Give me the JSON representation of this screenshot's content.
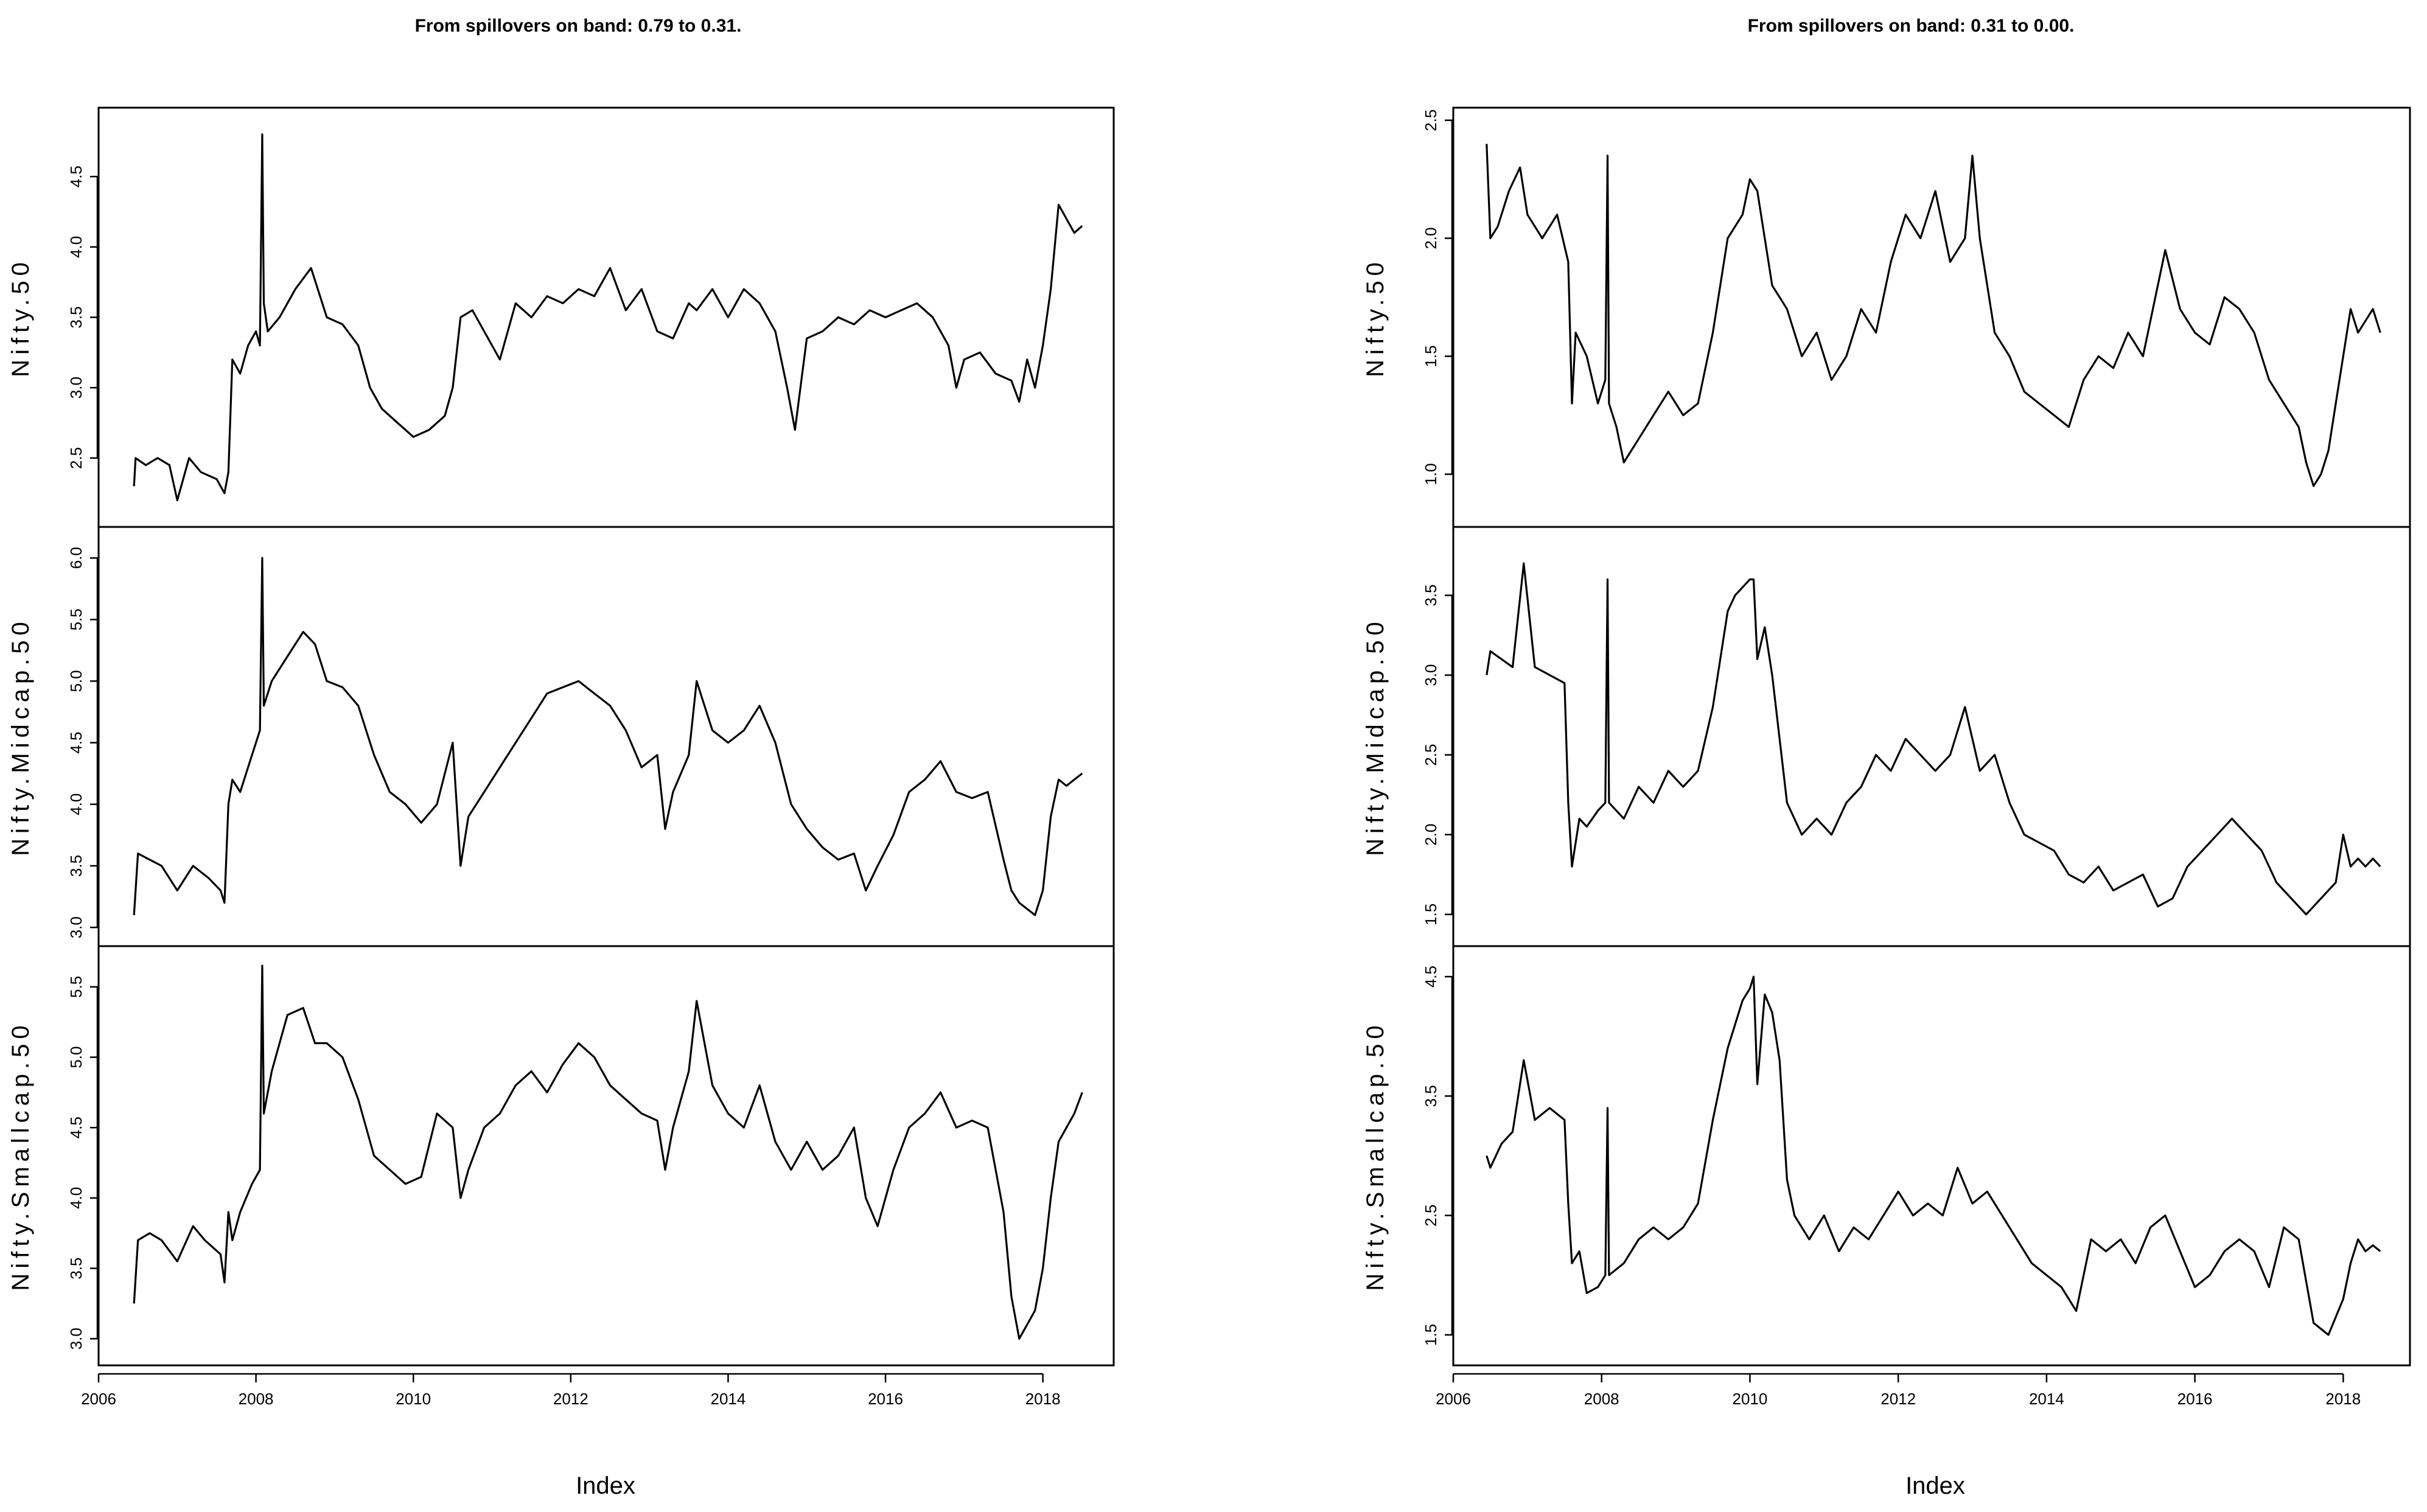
{
  "chart_data": [
    {
      "type": "line",
      "title": "From spillovers on band: 0.79 to 0.31.",
      "xlabel": "Index",
      "x_ticks": [
        "2006",
        "2008",
        "2010",
        "2012",
        "2014",
        "2016",
        "2018"
      ],
      "xlim": [
        2006.0,
        2018.9
      ],
      "grid": false,
      "panels": [
        {
          "ylabel": "Nifty.50",
          "ylim": [
            2.1,
            4.9
          ],
          "y_ticks": [
            2.5,
            3.0,
            3.5,
            4.0,
            4.5
          ],
          "x": [
            2006.45,
            2006.47,
            2006.6,
            2006.75,
            2006.9,
            2007.0,
            2007.15,
            2007.3,
            2007.5,
            2007.6,
            2007.65,
            2007.7,
            2007.8,
            2007.9,
            2008.0,
            2008.05,
            2008.08,
            2008.1,
            2008.15,
            2008.3,
            2008.5,
            2008.7,
            2008.9,
            2009.1,
            2009.3,
            2009.45,
            2009.6,
            2009.8,
            2010.0,
            2010.2,
            2010.4,
            2010.5,
            2010.6,
            2010.75,
            2010.9,
            2011.1,
            2011.3,
            2011.5,
            2011.7,
            2011.9,
            2012.1,
            2012.3,
            2012.5,
            2012.7,
            2012.9,
            2013.1,
            2013.3,
            2013.5,
            2013.6,
            2013.8,
            2014.0,
            2014.2,
            2014.4,
            2014.6,
            2014.75,
            2014.85,
            2015.0,
            2015.2,
            2015.4,
            2015.6,
            2015.8,
            2016.0,
            2016.2,
            2016.4,
            2016.6,
            2016.8,
            2016.9,
            2017.0,
            2017.2,
            2017.4,
            2017.6,
            2017.7,
            2017.8,
            2017.9,
            2018.0,
            2018.1,
            2018.2,
            2018.3,
            2018.4,
            2018.5
          ],
          "y": [
            2.3,
            2.5,
            2.45,
            2.5,
            2.45,
            2.2,
            2.5,
            2.4,
            2.35,
            2.25,
            2.4,
            3.2,
            3.1,
            3.3,
            3.4,
            3.3,
            4.8,
            3.6,
            3.4,
            3.5,
            3.7,
            3.85,
            3.5,
            3.45,
            3.3,
            3.0,
            2.85,
            2.75,
            2.65,
            2.7,
            2.8,
            3.0,
            3.5,
            3.55,
            3.4,
            3.2,
            3.6,
            3.5,
            3.65,
            3.6,
            3.7,
            3.65,
            3.85,
            3.55,
            3.7,
            3.4,
            3.35,
            3.6,
            3.55,
            3.7,
            3.5,
            3.7,
            3.6,
            3.4,
            3.0,
            2.7,
            3.35,
            3.4,
            3.5,
            3.45,
            3.55,
            3.5,
            3.55,
            3.6,
            3.5,
            3.3,
            3.0,
            3.2,
            3.25,
            3.1,
            3.05,
            2.9,
            3.2,
            3.0,
            3.3,
            3.7,
            4.3,
            4.2,
            4.1,
            4.15
          ]
        },
        {
          "ylabel": "Nifty.Midcap.50",
          "ylim": [
            2.95,
            6.15
          ],
          "y_ticks": [
            3.0,
            3.5,
            4.0,
            4.5,
            5.0,
            5.5,
            6.0
          ],
          "x": [
            2006.45,
            2006.5,
            2006.65,
            2006.8,
            2007.0,
            2007.2,
            2007.4,
            2007.55,
            2007.6,
            2007.65,
            2007.7,
            2007.8,
            2007.95,
            2008.05,
            2008.08,
            2008.1,
            2008.2,
            2008.4,
            2008.6,
            2008.75,
            2008.9,
            2009.1,
            2009.3,
            2009.5,
            2009.7,
            2009.9,
            2010.1,
            2010.3,
            2010.5,
            2010.6,
            2010.7,
            2010.9,
            2011.1,
            2011.3,
            2011.5,
            2011.7,
            2011.9,
            2012.1,
            2012.3,
            2012.5,
            2012.7,
            2012.9,
            2013.1,
            2013.2,
            2013.3,
            2013.5,
            2013.6,
            2013.8,
            2014.0,
            2014.2,
            2014.4,
            2014.6,
            2014.8,
            2015.0,
            2015.2,
            2015.4,
            2015.6,
            2015.75,
            2015.9,
            2016.1,
            2016.3,
            2016.5,
            2016.7,
            2016.9,
            2017.1,
            2017.3,
            2017.5,
            2017.6,
            2017.7,
            2017.9,
            2018.0,
            2018.1,
            2018.2,
            2018.3,
            2018.4,
            2018.5
          ],
          "y": [
            3.1,
            3.6,
            3.55,
            3.5,
            3.3,
            3.5,
            3.4,
            3.3,
            3.2,
            4.0,
            4.2,
            4.1,
            4.4,
            4.6,
            6.0,
            4.8,
            5.0,
            5.2,
            5.4,
            5.3,
            5.0,
            4.95,
            4.8,
            4.4,
            4.1,
            4.0,
            3.85,
            4.0,
            4.5,
            3.5,
            3.9,
            4.1,
            4.3,
            4.5,
            4.7,
            4.9,
            4.95,
            5.0,
            4.9,
            4.8,
            4.6,
            4.3,
            4.4,
            3.8,
            4.1,
            4.4,
            5.0,
            4.6,
            4.5,
            4.6,
            4.8,
            4.5,
            4.0,
            3.8,
            3.65,
            3.55,
            3.6,
            3.3,
            3.5,
            3.75,
            4.1,
            4.2,
            4.35,
            4.1,
            4.05,
            4.1,
            3.55,
            3.3,
            3.2,
            3.1,
            3.3,
            3.9,
            4.2,
            4.15,
            4.2,
            4.25
          ]
        },
        {
          "ylabel": "Nifty.Smallcap.50",
          "ylim": [
            2.9,
            5.7
          ],
          "y_ticks": [
            3.0,
            3.5,
            4.0,
            4.5,
            5.0,
            5.5
          ],
          "x": [
            2006.45,
            2006.5,
            2006.65,
            2006.8,
            2007.0,
            2007.2,
            2007.35,
            2007.55,
            2007.6,
            2007.65,
            2007.7,
            2007.8,
            2007.95,
            2008.05,
            2008.08,
            2008.1,
            2008.2,
            2008.4,
            2008.6,
            2008.75,
            2008.9,
            2009.1,
            2009.3,
            2009.5,
            2009.7,
            2009.9,
            2010.1,
            2010.3,
            2010.5,
            2010.6,
            2010.7,
            2010.9,
            2011.1,
            2011.3,
            2011.5,
            2011.7,
            2011.9,
            2012.1,
            2012.3,
            2012.5,
            2012.7,
            2012.9,
            2013.1,
            2013.2,
            2013.3,
            2013.5,
            2013.6,
            2013.8,
            2014.0,
            2014.2,
            2014.4,
            2014.6,
            2014.8,
            2015.0,
            2015.2,
            2015.4,
            2015.6,
            2015.75,
            2015.9,
            2016.1,
            2016.3,
            2016.5,
            2016.7,
            2016.9,
            2017.1,
            2017.3,
            2017.5,
            2017.6,
            2017.7,
            2017.9,
            2018.0,
            2018.1,
            2018.2,
            2018.3,
            2018.4,
            2018.5
          ],
          "y": [
            3.25,
            3.7,
            3.75,
            3.7,
            3.55,
            3.8,
            3.7,
            3.6,
            3.4,
            3.9,
            3.7,
            3.9,
            4.1,
            4.2,
            5.65,
            4.6,
            4.9,
            5.3,
            5.35,
            5.1,
            5.1,
            5.0,
            4.7,
            4.3,
            4.2,
            4.1,
            4.15,
            4.6,
            4.5,
            4.0,
            4.2,
            4.5,
            4.6,
            4.8,
            4.9,
            4.75,
            4.95,
            5.1,
            5.0,
            4.8,
            4.7,
            4.6,
            4.55,
            4.2,
            4.5,
            4.9,
            5.4,
            4.8,
            4.6,
            4.5,
            4.8,
            4.4,
            4.2,
            4.4,
            4.2,
            4.3,
            4.5,
            4.0,
            3.8,
            4.2,
            4.5,
            4.6,
            4.75,
            4.5,
            4.55,
            4.5,
            3.9,
            3.3,
            3.0,
            3.2,
            3.5,
            4.0,
            4.4,
            4.5,
            4.6,
            4.75
          ]
        }
      ]
    },
    {
      "type": "line",
      "title": "From spillovers on band: 0.31 to 0.00.",
      "xlabel": "Index",
      "x_ticks": [
        "2006",
        "2008",
        "2010",
        "2012",
        "2014",
        "2016",
        "2018"
      ],
      "xlim": [
        2006.0,
        2018.9
      ],
      "grid": false,
      "panels": [
        {
          "ylabel": "Nifty.50",
          "ylim": [
            0.83,
            2.5
          ],
          "y_ticks": [
            1.0,
            1.5,
            2.0,
            2.5
          ],
          "x": [
            2006.45,
            2006.5,
            2006.6,
            2006.75,
            2006.9,
            2007.0,
            2007.2,
            2007.4,
            2007.55,
            2007.6,
            2007.65,
            2007.8,
            2007.95,
            2008.05,
            2008.08,
            2008.1,
            2008.2,
            2008.3,
            2008.5,
            2008.7,
            2008.9,
            2009.1,
            2009.3,
            2009.5,
            2009.7,
            2009.9,
            2010.0,
            2010.1,
            2010.3,
            2010.5,
            2010.7,
            2010.9,
            2011.1,
            2011.3,
            2011.5,
            2011.7,
            2011.9,
            2012.1,
            2012.3,
            2012.5,
            2012.7,
            2012.9,
            2013.0,
            2013.1,
            2013.3,
            2013.5,
            2013.7,
            2013.9,
            2014.1,
            2014.3,
            2014.5,
            2014.7,
            2014.9,
            2015.1,
            2015.3,
            2015.5,
            2015.6,
            2015.8,
            2016.0,
            2016.2,
            2016.4,
            2016.6,
            2016.8,
            2017.0,
            2017.2,
            2017.4,
            2017.5,
            2017.6,
            2017.7,
            2017.8,
            2017.9,
            2018.0,
            2018.1,
            2018.2,
            2018.3,
            2018.4,
            2018.5
          ],
          "y": [
            2.4,
            2.0,
            2.05,
            2.2,
            2.3,
            2.1,
            2.0,
            2.1,
            1.9,
            1.3,
            1.6,
            1.5,
            1.3,
            1.4,
            2.35,
            1.3,
            1.2,
            1.05,
            1.15,
            1.25,
            1.35,
            1.25,
            1.3,
            1.6,
            2.0,
            2.1,
            2.25,
            2.2,
            1.8,
            1.7,
            1.5,
            1.6,
            1.4,
            1.5,
            1.7,
            1.6,
            1.9,
            2.1,
            2.0,
            2.2,
            1.9,
            2.0,
            2.35,
            2.0,
            1.6,
            1.5,
            1.35,
            1.3,
            1.25,
            1.2,
            1.4,
            1.5,
            1.45,
            1.6,
            1.5,
            1.8,
            1.95,
            1.7,
            1.6,
            1.55,
            1.75,
            1.7,
            1.6,
            1.4,
            1.3,
            1.2,
            1.05,
            0.95,
            1.0,
            1.1,
            1.3,
            1.5,
            1.7,
            1.6,
            1.65,
            1.7,
            1.6
          ]
        },
        {
          "ylabel": "Nifty.Midcap.50",
          "ylim": [
            1.38,
            3.85
          ],
          "y_ticks": [
            1.5,
            2.0,
            2.5,
            3.0,
            3.5
          ],
          "x": [
            2006.45,
            2006.5,
            2006.65,
            2006.8,
            2006.95,
            2007.1,
            2007.3,
            2007.5,
            2007.55,
            2007.6,
            2007.7,
            2007.8,
            2007.95,
            2008.05,
            2008.08,
            2008.1,
            2008.3,
            2008.5,
            2008.7,
            2008.9,
            2009.1,
            2009.3,
            2009.5,
            2009.7,
            2009.8,
            2009.9,
            2010.0,
            2010.05,
            2010.1,
            2010.2,
            2010.3,
            2010.5,
            2010.7,
            2010.9,
            2011.1,
            2011.3,
            2011.5,
            2011.7,
            2011.9,
            2012.1,
            2012.3,
            2012.5,
            2012.7,
            2012.9,
            2013.1,
            2013.3,
            2013.5,
            2013.7,
            2013.9,
            2014.1,
            2014.3,
            2014.5,
            2014.7,
            2014.9,
            2015.1,
            2015.3,
            2015.5,
            2015.7,
            2015.9,
            2016.1,
            2016.3,
            2016.5,
            2016.7,
            2016.9,
            2017.1,
            2017.3,
            2017.5,
            2017.6,
            2017.7,
            2017.9,
            2018.0,
            2018.1,
            2018.2,
            2018.3,
            2018.4,
            2018.5
          ],
          "y": [
            3.0,
            3.15,
            3.1,
            3.05,
            3.7,
            3.05,
            3.0,
            2.95,
            2.2,
            1.8,
            2.1,
            2.05,
            2.15,
            2.2,
            3.6,
            2.2,
            2.1,
            2.3,
            2.2,
            2.4,
            2.3,
            2.4,
            2.8,
            3.4,
            3.5,
            3.55,
            3.6,
            3.6,
            3.1,
            3.3,
            3.0,
            2.2,
            2.0,
            2.1,
            2.0,
            2.2,
            2.3,
            2.5,
            2.4,
            2.6,
            2.5,
            2.4,
            2.5,
            2.8,
            2.4,
            2.5,
            2.2,
            2.0,
            1.95,
            1.9,
            1.75,
            1.7,
            1.8,
            1.65,
            1.7,
            1.75,
            1.55,
            1.6,
            1.8,
            1.9,
            2.0,
            2.1,
            2.0,
            1.9,
            1.7,
            1.6,
            1.5,
            1.55,
            1.6,
            1.7,
            2.0,
            1.8,
            1.85,
            1.8,
            1.85,
            1.8
          ]
        },
        {
          "ylabel": "Nifty.Smallcap.50",
          "ylim": [
            1.35,
            4.65
          ],
          "y_ticks": [
            1.5,
            2.5,
            3.5,
            4.5
          ],
          "x": [
            2006.45,
            2006.5,
            2006.65,
            2006.8,
            2006.95,
            2007.1,
            2007.3,
            2007.5,
            2007.55,
            2007.6,
            2007.7,
            2007.8,
            2007.95,
            2008.05,
            2008.08,
            2008.1,
            2008.3,
            2008.5,
            2008.7,
            2008.9,
            2009.1,
            2009.3,
            2009.5,
            2009.7,
            2009.8,
            2009.9,
            2010.0,
            2010.05,
            2010.1,
            2010.2,
            2010.3,
            2010.4,
            2010.5,
            2010.6,
            2010.8,
            2011.0,
            2011.2,
            2011.4,
            2011.6,
            2011.8,
            2012.0,
            2012.2,
            2012.4,
            2012.6,
            2012.8,
            2013.0,
            2013.2,
            2013.4,
            2013.6,
            2013.8,
            2014.0,
            2014.2,
            2014.4,
            2014.6,
            2014.8,
            2015.0,
            2015.2,
            2015.4,
            2015.6,
            2015.8,
            2016.0,
            2016.2,
            2016.4,
            2016.6,
            2016.8,
            2017.0,
            2017.2,
            2017.4,
            2017.6,
            2017.8,
            2018.0,
            2018.1,
            2018.2,
            2018.3,
            2018.4,
            2018.5
          ],
          "y": [
            3.0,
            2.9,
            3.1,
            3.2,
            3.8,
            3.3,
            3.4,
            3.3,
            2.6,
            2.1,
            2.2,
            1.85,
            1.9,
            2.0,
            3.4,
            2.0,
            2.1,
            2.3,
            2.4,
            2.3,
            2.4,
            2.6,
            3.3,
            3.9,
            4.1,
            4.3,
            4.4,
            4.5,
            3.6,
            4.35,
            4.2,
            3.8,
            2.8,
            2.5,
            2.3,
            2.5,
            2.2,
            2.4,
            2.3,
            2.5,
            2.7,
            2.5,
            2.6,
            2.5,
            2.9,
            2.6,
            2.7,
            2.5,
            2.3,
            2.1,
            2.0,
            1.9,
            1.7,
            2.3,
            2.2,
            2.3,
            2.1,
            2.4,
            2.5,
            2.2,
            1.9,
            2.0,
            2.2,
            2.3,
            2.2,
            1.9,
            2.4,
            2.3,
            1.6,
            1.5,
            1.8,
            2.1,
            2.3,
            2.2,
            2.25,
            2.2
          ]
        }
      ]
    }
  ]
}
